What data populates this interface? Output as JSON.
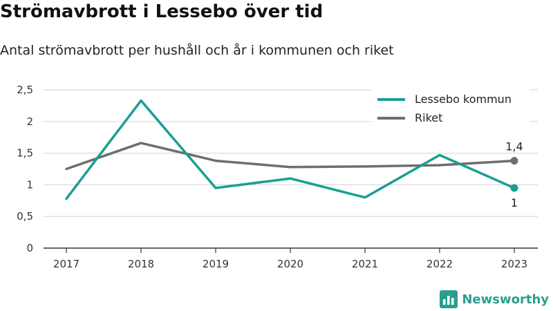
{
  "title": "Strömavbrott i Lessebo över tid",
  "subtitle": "Antal strömavbrott per hushåll och år i kommunen och riket",
  "brand": {
    "name": "Newsworthy"
  },
  "colors": {
    "lessebo": "#1a9e94",
    "riket": "#6e6e6e",
    "grid": "#d9d9d9",
    "axis": "#333333",
    "brand": "#2a9d8f"
  },
  "chart_data": {
    "type": "line",
    "title": "Strömavbrott i Lessebo över tid",
    "subtitle": "Antal strömavbrott per hushåll och år i kommunen och riket",
    "categories": [
      "2017",
      "2018",
      "2019",
      "2020",
      "2021",
      "2022",
      "2023"
    ],
    "ylim": [
      0,
      2.5
    ],
    "yticks": [
      0,
      0.5,
      1,
      1.5,
      2,
      2.5
    ],
    "ytick_labels": [
      "0",
      "0,5",
      "1",
      "1,5",
      "2",
      "2,5"
    ],
    "grid": true,
    "legend_position": "top-right",
    "series": [
      {
        "name": "Lessebo kommun",
        "values": [
          0.78,
          2.33,
          0.95,
          1.1,
          0.8,
          1.47,
          0.95
        ],
        "color": "#1a9e94",
        "end_label": "1"
      },
      {
        "name": "Riket",
        "values": [
          1.25,
          1.66,
          1.38,
          1.28,
          1.29,
          1.31,
          1.38
        ],
        "color": "#6e6e6e",
        "end_label": "1,4"
      }
    ]
  }
}
